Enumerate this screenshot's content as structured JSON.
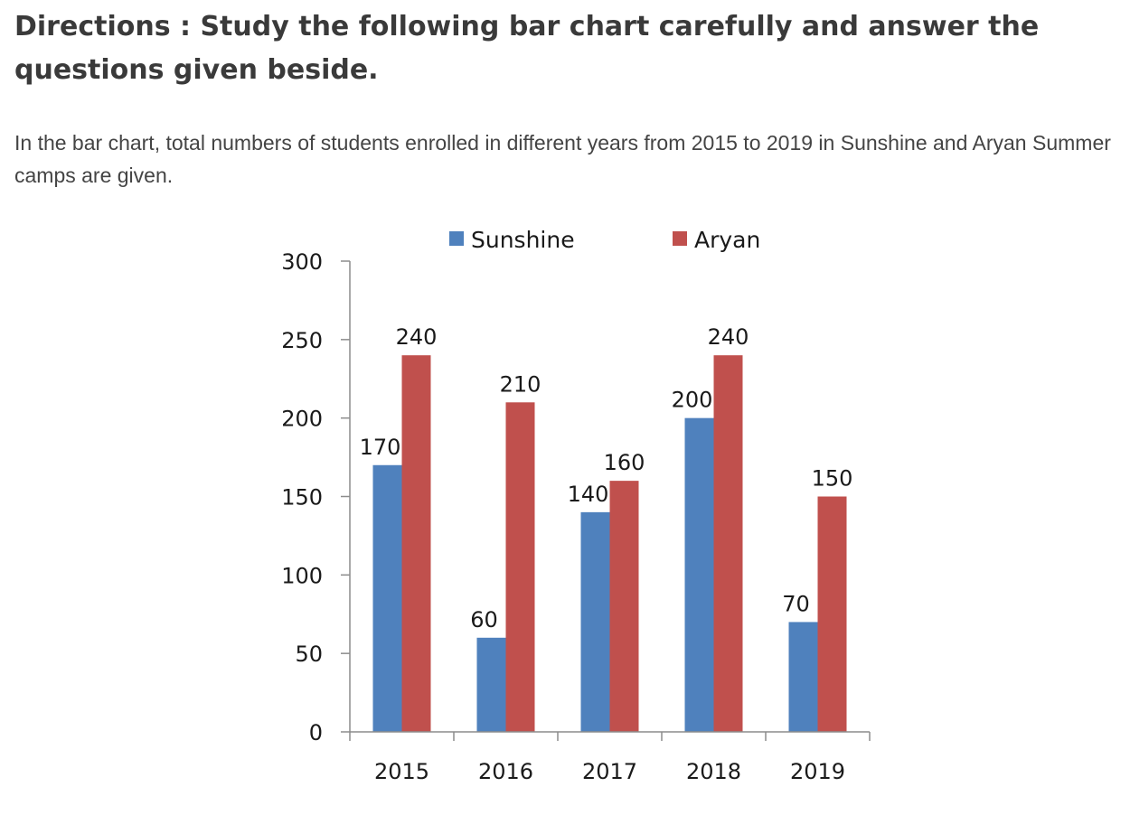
{
  "header": {
    "title": "Directions : Study the following bar chart carefully and answer the questions given beside.",
    "description": "In the bar chart, total numbers of students enrolled in different years from 2015 to 2019 in Sunshine and Aryan Summer camps are given."
  },
  "chart_data": {
    "type": "bar",
    "title": "",
    "xlabel": "",
    "ylabel": "",
    "categories": [
      "2015",
      "2016",
      "2017",
      "2018",
      "2019"
    ],
    "series": [
      {
        "name": "Sunshine",
        "color": "#4f81bd",
        "values": [
          170,
          60,
          140,
          200,
          70
        ]
      },
      {
        "name": "Aryan",
        "color": "#c0504d",
        "values": [
          240,
          210,
          160,
          240,
          150
        ]
      }
    ],
    "ylim": [
      0,
      300
    ],
    "yticks": [
      "0",
      "50",
      "100",
      "150",
      "200",
      "250",
      "300"
    ],
    "data_labels": true,
    "grid": false,
    "legend_position": "top"
  }
}
